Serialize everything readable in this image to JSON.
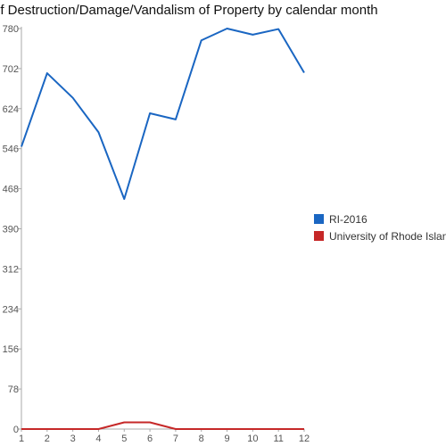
{
  "chart_data": {
    "type": "line",
    "title": "of Destruction/Damage/Vandalism of Property by calendar month",
    "xlabel": "",
    "ylabel": "",
    "x": [
      1,
      2,
      3,
      4,
      5,
      6,
      7,
      8,
      9,
      10,
      11,
      12
    ],
    "ylim": [
      0,
      780
    ],
    "yticks": [
      0,
      78,
      156,
      234,
      312,
      390,
      468,
      546,
      624,
      702,
      780
    ],
    "grid": false,
    "legend_position": "right",
    "series": [
      {
        "name": "RI-2016",
        "color": "#1a66c2",
        "values": [
          550,
          693,
          645,
          578,
          448,
          615,
          603,
          757,
          780,
          768,
          779,
          694
        ]
      },
      {
        "name": "University of Rhode Island",
        "color": "#c62828",
        "values": [
          0,
          0,
          0,
          0,
          13,
          13,
          0,
          0,
          0,
          0,
          0,
          0
        ]
      }
    ]
  }
}
